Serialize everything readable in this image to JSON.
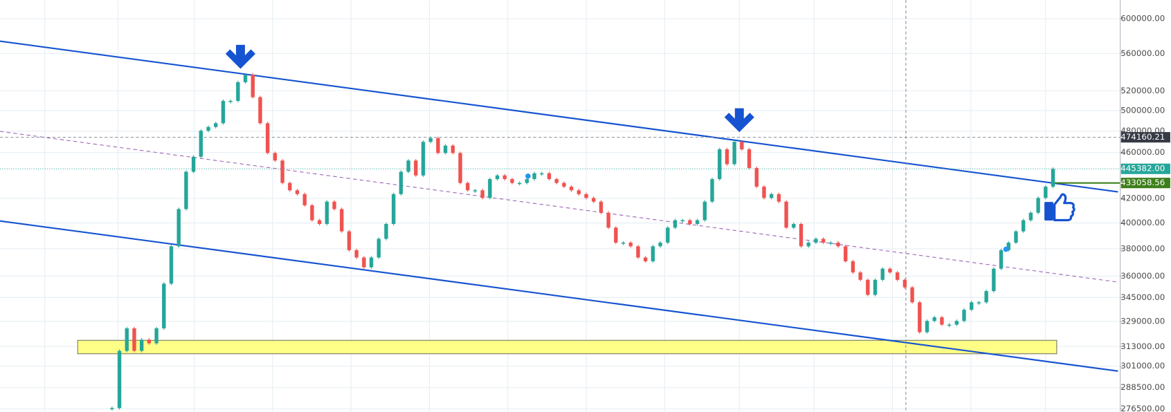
{
  "chart_data": {
    "type": "candlestick",
    "log_scale": true,
    "grid": true,
    "up_color": "#26a69a",
    "down_color": "#ef5350",
    "series": [
      {
        "values": [
          277000,
          310300,
          324500,
          310300,
          317300,
          315000,
          324500,
          354600,
          381900,
          411200,
          442800,
          456200,
          480400,
          484000,
          487600,
          509700,
          509700,
          529000,
          536900,
          513500,
          487600,
          459600,
          452800,
          433100,
          426800,
          423600,
          414300,
          402200,
          399200,
          417300,
          411200,
          393400,
          379000,
          373500,
          366300,
          373500,
          387600,
          399200,
          423600,
          442800,
          452800,
          439600,
          469900,
          473400,
          459600,
          466400,
          459600,
          433100,
          426800,
          426800,
          420400,
          436400,
          439600,
          436400,
          433100,
          433100,
          436400,
          441500,
          441500,
          436400,
          433100,
          429900,
          426800,
          423600,
          420400,
          417300,
          408200,
          396300,
          384700,
          384700,
          381900,
          373500,
          370700,
          381900,
          384700,
          396300,
          402200,
          402200,
          399200,
          402200,
          417300,
          436400,
          463000,
          449500,
          469900,
          463000,
          446100,
          429900,
          420400,
          423600,
          417300,
          396300,
          399200,
          381900,
          384700,
          387600,
          384700,
          384700,
          381900,
          370700,
          362600,
          357300,
          346800,
          357300,
          365300,
          362600,
          357300,
          352000,
          341700,
          322000,
          329300,
          331700,
          326900,
          326900,
          329300,
          336700,
          341700,
          341700,
          349400,
          365300,
          379000,
          384700,
          393400,
          402200,
          408200,
          420400,
          429900,
          445382
        ]
      }
    ],
    "ylim": [
      274900,
      622600
    ],
    "yticks": [
      {
        "value": 600000,
        "label": "600000.00"
      },
      {
        "value": 560000,
        "label": "560000.00"
      },
      {
        "value": 520000,
        "label": "520000.00"
      },
      {
        "value": 500000,
        "label": "500000.00"
      },
      {
        "value": 480000,
        "label": "480000.00"
      },
      {
        "value": 460000,
        "label": "460000.00"
      },
      {
        "value": 420000,
        "label": "420000.00"
      },
      {
        "value": 400000,
        "label": "400000.00"
      },
      {
        "value": 380000,
        "label": "380000.00"
      },
      {
        "value": 360000,
        "label": "360000.00"
      },
      {
        "value": 345000,
        "label": "345000.00"
      },
      {
        "value": 329000,
        "label": "329000.00"
      },
      {
        "value": 313000,
        "label": "313000.00"
      },
      {
        "value": 301000,
        "label": "301000.00"
      },
      {
        "value": 288500,
        "label": "288500.00"
      },
      {
        "value": 276500,
        "label": "276500.00"
      }
    ],
    "price_labels": [
      {
        "price": 474160.21,
        "color": "#363a45",
        "line": "dashed"
      },
      {
        "price": {
          "value": 445382,
          "label": "445382.00"
        },
        "color": "#26a69a",
        "line": "dotted"
      },
      {
        "price": {
          "value": 433058.56,
          "label": "433058.56"
        },
        "color": "#3d7f1a",
        "line": "short"
      }
    ],
    "trend_lines": [
      {
        "start": 573900,
        "end": 425500,
        "color": "#1553d0",
        "dashed": false
      },
      {
        "start": 401600,
        "end": 298100,
        "color": "#1553d0",
        "dashed": false
      },
      {
        "start": 479800,
        "end": 355700,
        "color": "#9c5fb5",
        "dashed": true
      }
    ],
    "zone": {
      "low": 308500,
      "high": 316900,
      "color": "#ffff88"
    }
  }
}
